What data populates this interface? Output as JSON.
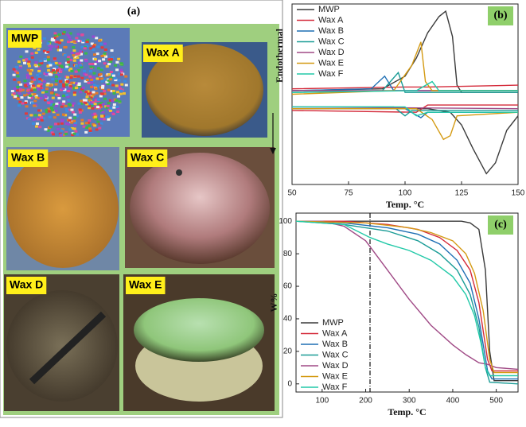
{
  "panel_a": {
    "label": "(a)",
    "photos": [
      "MWP",
      "Wax A",
      "Wax B",
      "Wax C",
      "Wax D",
      "Wax E"
    ]
  },
  "chart_data": [
    {
      "type": "line",
      "panel_label": "(b)",
      "xlabel": "Temp. °C",
      "ylabel": "Endothermal",
      "xlim": [
        50,
        150
      ],
      "xticks": [
        50,
        75,
        100,
        125,
        150
      ],
      "ylim": [
        0,
        100
      ],
      "legend": "upper left",
      "series": [
        {
          "name": "MWP",
          "color": "#3a3a3a",
          "x": [
            50,
            90,
            100,
            105,
            110,
            115,
            118,
            121,
            123,
            125,
            150
          ],
          "values": [
            52,
            53,
            60,
            70,
            84,
            93,
            96,
            82,
            55,
            51,
            51
          ],
          "cooling_x": [
            50,
            110,
            120,
            125,
            130,
            136,
            140,
            145,
            150
          ],
          "cooling_values": [
            42,
            42,
            40,
            33,
            20,
            6,
            12,
            30,
            38
          ]
        },
        {
          "name": "Wax A",
          "color": "#d42a3a",
          "x": [
            50,
            100,
            110,
            150
          ],
          "values": [
            53,
            54,
            54,
            55
          ],
          "cooling_x": [
            50,
            105,
            110,
            150
          ],
          "cooling_values": [
            41,
            40,
            44,
            44
          ]
        },
        {
          "name": "Wax B",
          "color": "#1f6fb4",
          "x": [
            50,
            85,
            91,
            95,
            150
          ],
          "values": [
            52,
            53,
            60,
            52,
            52
          ],
          "cooling_x": [
            50,
            100,
            107,
            110,
            150
          ],
          "cooling_values": [
            42,
            42,
            37,
            40,
            40
          ]
        },
        {
          "name": "Wax C",
          "color": "#1a9c96",
          "x": [
            50,
            90,
            97,
            100,
            150
          ],
          "values": [
            51,
            52,
            62,
            51,
            51
          ],
          "cooling_x": [
            50,
            95,
            100,
            103,
            150
          ],
          "cooling_values": [
            43,
            43,
            38,
            41,
            41
          ]
        },
        {
          "name": "Wax D",
          "color": "#a04a86",
          "x": [
            50,
            150
          ],
          "values": [
            52,
            52
          ],
          "cooling_x": [
            50,
            150
          ],
          "cooling_values": [
            43,
            42
          ]
        },
        {
          "name": "Wax E",
          "color": "#d49a12",
          "x": [
            50,
            95,
            103,
            107,
            109,
            112,
            150
          ],
          "values": [
            50,
            52,
            66,
            79,
            57,
            52,
            52
          ],
          "cooling_x": [
            50,
            105,
            112,
            117,
            120,
            123,
            150
          ],
          "cooling_values": [
            42,
            42,
            36,
            25,
            27,
            38,
            40
          ]
        },
        {
          "name": "Wax F",
          "color": "#22c9a8",
          "x": [
            50,
            105,
            112,
            115,
            150
          ],
          "values": [
            51,
            52,
            57,
            52,
            52
          ],
          "cooling_x": [
            50,
            100,
            105,
            110,
            150
          ],
          "cooling_values": [
            43,
            43,
            38,
            40,
            40
          ]
        }
      ]
    },
    {
      "type": "line",
      "panel_label": "(c)",
      "xlabel": "Temp. °C",
      "ylabel": "W%",
      "xlim": [
        40,
        550
      ],
      "xticks": [
        100,
        200,
        300,
        400,
        500
      ],
      "ylim": [
        -5,
        105
      ],
      "yticks": [
        0,
        20,
        40,
        60,
        80,
        100
      ],
      "vline": 210,
      "legend": "lower left",
      "series": [
        {
          "name": "MWP",
          "color": "#3a3a3a",
          "x": [
            40,
            420,
            440,
            460,
            475,
            485,
            495,
            550
          ],
          "values": [
            100,
            100,
            99,
            95,
            70,
            20,
            2,
            2
          ]
        },
        {
          "name": "Wax A",
          "color": "#d42a3a",
          "x": [
            40,
            150,
            250,
            320,
            370,
            410,
            440,
            460,
            480,
            490,
            550
          ],
          "values": [
            100,
            100,
            98,
            95,
            90,
            82,
            70,
            50,
            15,
            8,
            8
          ]
        },
        {
          "name": "Wax B",
          "color": "#1f6fb4",
          "x": [
            40,
            150,
            250,
            320,
            370,
            410,
            440,
            460,
            480,
            490,
            550
          ],
          "values": [
            100,
            99,
            96,
            92,
            86,
            76,
            62,
            40,
            8,
            3,
            3
          ]
        },
        {
          "name": "Wax C",
          "color": "#1a9c96",
          "x": [
            40,
            150,
            250,
            320,
            370,
            410,
            440,
            460,
            475,
            485,
            550
          ],
          "values": [
            100,
            98,
            94,
            88,
            80,
            70,
            55,
            35,
            10,
            1,
            0
          ]
        },
        {
          "name": "Wax D",
          "color": "#a04a86",
          "x": [
            40,
            100,
            150,
            200,
            250,
            300,
            350,
            400,
            430,
            460,
            480,
            500,
            550
          ],
          "values": [
            100,
            100,
            97,
            88,
            70,
            52,
            36,
            24,
            18,
            13,
            12,
            10,
            9
          ]
        },
        {
          "name": "Wax E",
          "color": "#d49a12",
          "x": [
            40,
            200,
            300,
            350,
            400,
            430,
            450,
            470,
            485,
            495,
            550
          ],
          "values": [
            100,
            99,
            96,
            93,
            88,
            80,
            68,
            45,
            15,
            7,
            7
          ]
        },
        {
          "name": "Wax F",
          "color": "#22c9a8",
          "x": [
            40,
            150,
            210,
            250,
            300,
            350,
            400,
            430,
            450,
            465,
            475,
            485,
            550
          ],
          "values": [
            100,
            98,
            90,
            86,
            82,
            76,
            66,
            55,
            42,
            25,
            10,
            5,
            5
          ]
        }
      ]
    }
  ]
}
